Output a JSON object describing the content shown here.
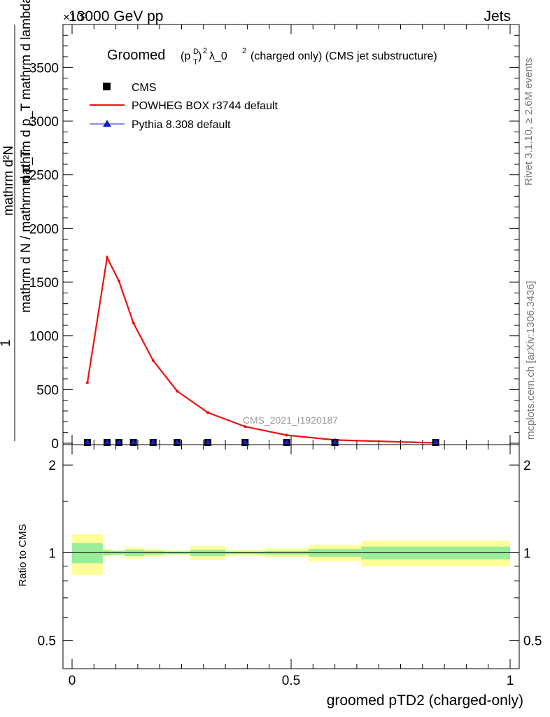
{
  "header": {
    "left": "13000 GeV pp",
    "right": "Jets",
    "exponent": "×10³"
  },
  "side_labels": {
    "rivet": "Rivet 3.1.10, ≥ 2.6M events",
    "mcplots": "mcplots.cern.ch [arXiv:1306.3436]"
  },
  "watermark": "CMS_2021_I1920187",
  "chart_data": [
    {
      "type": "line",
      "title_main": "Groomed",
      "title_rest": "λ_0",
      "title_tail": "(charged only) (CMS jet substructure)",
      "ylabel_numerator": "mathrm d²N",
      "ylabel_denominator": "mathrm d p_T mathrm d lambda",
      "ylabel_prefix": "1",
      "ylabel_prefix_den": "mathrm d N / mathrm d p_T",
      "y_exponent": "×10³",
      "xlim": [
        0,
        1
      ],
      "ylim": [
        0,
        3900
      ],
      "y_ticks": [
        0,
        500,
        1000,
        1500,
        2000,
        2500,
        3000,
        3500
      ],
      "y_tick_labels": [
        "0",
        "500",
        "1000",
        "1500",
        "2000",
        "2500",
        "3000",
        "3500"
      ],
      "legend": [
        {
          "name": "CMS",
          "marker": "square",
          "color": "#000000"
        },
        {
          "name": "POWHEG BOX r3744 default",
          "marker": "line",
          "color": "#ee1111"
        },
        {
          "name": "Pythia 8.308 default",
          "marker": "triangle",
          "color": "#1122cc"
        }
      ],
      "series": [
        {
          "name": "POWHEG BOX r3744 default",
          "color": "#ee1111",
          "x": [
            0.035,
            0.08,
            0.107,
            0.14,
            0.185,
            0.24,
            0.31,
            0.395,
            0.49,
            0.6,
            0.83
          ],
          "y": [
            565,
            1730,
            1510,
            1120,
            770,
            485,
            285,
            155,
            75,
            30,
            3
          ]
        },
        {
          "name": "CMS",
          "color": "#000000",
          "x": [
            0.035,
            0.08,
            0.107,
            0.14,
            0.185,
            0.24,
            0.31,
            0.395,
            0.49,
            0.6,
            0.83
          ],
          "y": [
            0,
            0,
            0,
            0,
            0,
            0,
            0,
            0,
            0,
            0,
            0
          ]
        },
        {
          "name": "Pythia 8.308 default",
          "color": "#1122cc",
          "x": [
            0.035,
            0.08,
            0.107,
            0.14,
            0.185,
            0.24,
            0.31,
            0.395,
            0.49,
            0.6,
            0.83
          ],
          "y": [
            0,
            0,
            0,
            0,
            0,
            0,
            0,
            0,
            0,
            0,
            0
          ]
        }
      ]
    },
    {
      "type": "area",
      "ylabel": "Ratio to CMS",
      "xlabel": "groomed pTD2 (charged-only)",
      "xlim": [
        0,
        1
      ],
      "ylim": [
        0.4,
        2.35
      ],
      "log_y": true,
      "y_ticks": [
        0.5,
        1,
        2
      ],
      "y_tick_labels": [
        "0.5",
        "1",
        "2"
      ],
      "x_ticks": [
        0,
        0.5,
        1
      ],
      "x_tick_labels": [
        "0",
        "0.5",
        "1"
      ],
      "bands": {
        "edges": [
          0,
          0.07,
          0.09,
          0.12,
          0.165,
          0.21,
          0.27,
          0.35,
          0.44,
          0.54,
          0.66,
          1.0
        ],
        "stat_lo": [
          0.92,
          0.98,
          0.985,
          0.975,
          0.985,
          0.99,
          0.975,
          0.99,
          0.985,
          0.97,
          0.95
        ],
        "stat_hi": [
          1.08,
          1.02,
          1.015,
          1.025,
          1.015,
          1.01,
          1.025,
          1.01,
          1.015,
          1.03,
          1.05
        ],
        "syst_lo": [
          0.84,
          0.97,
          0.98,
          0.955,
          0.97,
          0.98,
          0.945,
          0.975,
          0.965,
          0.935,
          0.9
        ],
        "syst_hi": [
          1.16,
          1.03,
          1.02,
          1.045,
          1.03,
          1.02,
          1.055,
          1.025,
          1.035,
          1.065,
          1.1
        ],
        "stat_color": "#99ee99",
        "syst_color": "#ffff99"
      }
    }
  ]
}
